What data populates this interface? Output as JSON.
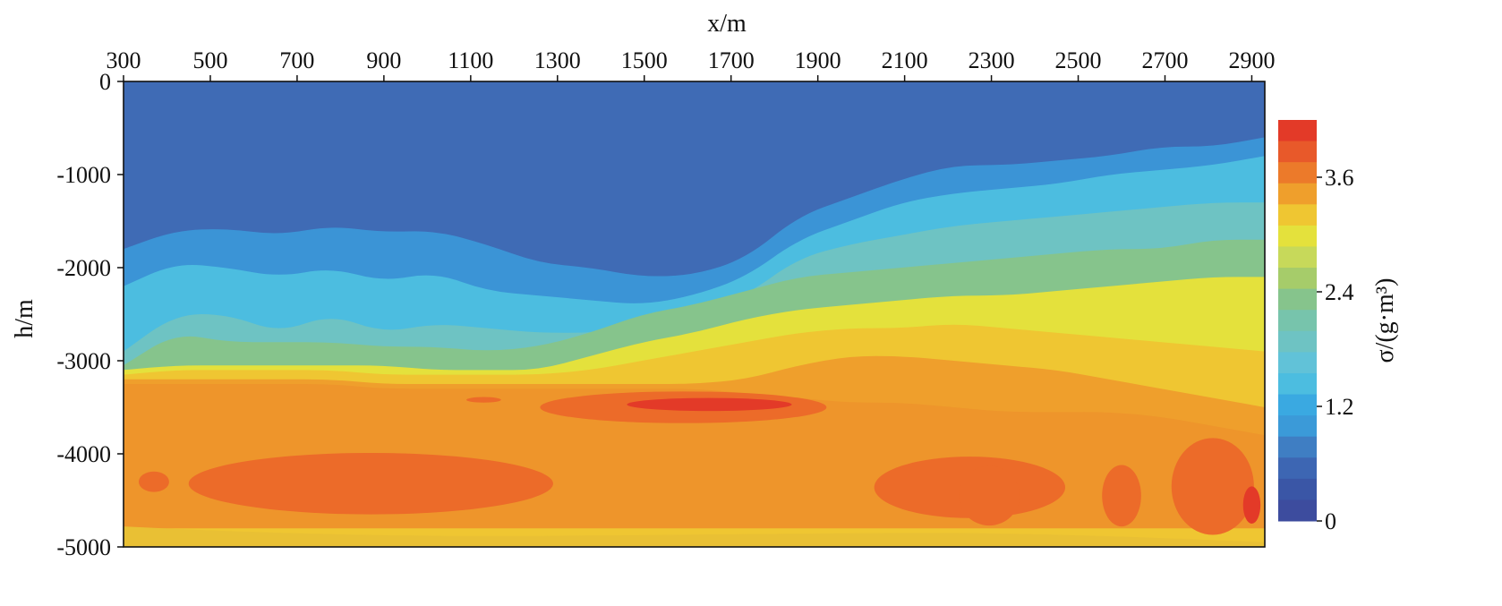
{
  "chart_data": {
    "type": "heatmap",
    "title": "",
    "xlabel": "x/m",
    "ylabel": "h/m",
    "colorbar_label": "σ/(g·m³)",
    "xlim": [
      300,
      2930
    ],
    "ylim": [
      -5000,
      0
    ],
    "x_ticks": [
      300,
      500,
      700,
      900,
      1100,
      1300,
      1500,
      1700,
      1900,
      2100,
      2300,
      2500,
      2700,
      2900
    ],
    "y_ticks": [
      0,
      -1000,
      -2000,
      -3000,
      -4000,
      -5000
    ],
    "colorbar": {
      "range": [
        0,
        4.2
      ],
      "ticks": [
        0,
        1.2,
        2.4,
        3.6
      ],
      "tick_labels": [
        "0",
        "1.2",
        "2.4",
        "3.6"
      ],
      "levels": [
        0,
        0.3,
        0.6,
        0.9,
        1.2,
        1.5,
        1.8,
        2.1,
        2.4,
        2.7,
        3.0,
        3.3,
        3.6,
        3.9,
        4.2
      ],
      "colors": [
        "#3d4c9e",
        "#3a56a6",
        "#3d66b3",
        "#3f7ec3",
        "#3b9ad8",
        "#3aa9e1",
        "#4cbde0",
        "#61c2d8",
        "#6ec3c3",
        "#77c4ac",
        "#86c48c",
        "#a6cc6a",
        "#c7d95a",
        "#e4e13c",
        "#efc632",
        "#ef9f2c",
        "#ec7a2a",
        "#e8592a",
        "#e33a28"
      ]
    },
    "contours": [
      {
        "level": "0-0.6",
        "color": "#3f6bb5",
        "boundary_depths_m": [
          -1800,
          -1600,
          -1580,
          -1650,
          -1550,
          -1620,
          -1600,
          -1750,
          -1950,
          -2000,
          -2100,
          -2080,
          -1900,
          -1450,
          -1250,
          -1050,
          -900,
          -900,
          -850,
          -800,
          -700,
          -700,
          -600
        ]
      },
      {
        "level": "0.9-1.2",
        "color": "#3b94d6",
        "boundary_depths_m": [
          -2200,
          -1950,
          -2000,
          -2100,
          -2000,
          -2150,
          -2050,
          -2250,
          -2300,
          -2350,
          -2400,
          -2300,
          -2100,
          -1700,
          -1500,
          -1300,
          -1200,
          -1150,
          -1100,
          -1000,
          -950,
          -900,
          -800
        ]
      },
      {
        "level": "1.2-1.5",
        "color": "#4cbde0",
        "boundary_depths_m": [
          -2900,
          -2500,
          -2500,
          -2700,
          -2500,
          -2700,
          -2600,
          -2650,
          -2700,
          -2700,
          -2650,
          -2500,
          -2300,
          -1900,
          -1750,
          -1650,
          -1550,
          -1500,
          -1450,
          -1400,
          -1350,
          -1300,
          -1300
        ]
      },
      {
        "level": "1.5-2.1",
        "color": "#6ec3c3",
        "boundary_depths_m": [
          -3050,
          -2700,
          -2800,
          -2800,
          -2800,
          -2850,
          -2850,
          -2900,
          -2850,
          -2700,
          -2500,
          -2400,
          -2250,
          -2100,
          -2050,
          -2000,
          -1950,
          -1900,
          -1850,
          -1800,
          -1800,
          -1700,
          -1700
        ]
      },
      {
        "level": "2.1-2.7",
        "color": "#86c48c",
        "boundary_depths_m": [
          -3100,
          -3050,
          -3050,
          -3050,
          -3050,
          -3050,
          -3100,
          -3100,
          -3100,
          -2950,
          -2800,
          -2700,
          -2550,
          -2450,
          -2400,
          -2350,
          -2300,
          -2300,
          -2250,
          -2200,
          -2150,
          -2100,
          -2100
        ]
      },
      {
        "level": "2.7-3.3",
        "color": "#e4e13c",
        "boundary_depths_m": [
          -3150,
          -3100,
          -3100,
          -3100,
          -3100,
          -3150,
          -3150,
          -3150,
          -3150,
          -3100,
          -3000,
          -2900,
          -2800,
          -2700,
          -2650,
          -2650,
          -2600,
          -2650,
          -2700,
          -2750,
          -2800,
          -2850,
          -2900
        ]
      },
      {
        "level": "3.3-3.6",
        "color": "#efc632",
        "boundary_depths_m": [
          -3200,
          -3200,
          -3200,
          -3200,
          -3200,
          -3250,
          -3250,
          -3250,
          -3250,
          -3250,
          -3250,
          -3250,
          -3200,
          -3050,
          -2950,
          -2950,
          -3000,
          -3050,
          -3100,
          -3200,
          -3300,
          -3400,
          -3500
        ]
      },
      {
        "level": "3.6-3.9",
        "color": "#ef9f2c",
        "boundary_depths_m": [
          -3250,
          -3250,
          -3250,
          -3250,
          -3250,
          -3300,
          -3300,
          -3300,
          -3300,
          -3300,
          -3300,
          -3300,
          -3350,
          -3400,
          -3450,
          -3450,
          -3500,
          -3550,
          -3550,
          -3550,
          -3600,
          -3700,
          -3800
        ]
      }
    ],
    "highs": [
      {
        "x_center": 1600,
        "depth_center_m": -3500,
        "color": "#ec6b29"
      },
      {
        "x_center": 1650,
        "depth_center_m": -3450,
        "color": "#e33a28"
      },
      {
        "x_center": 850,
        "depth_center_m": -4300,
        "color": "#ec6b29"
      },
      {
        "x_center": 2250,
        "depth_center_m": -4350,
        "color": "#ec6b29"
      },
      {
        "x_center": 2800,
        "depth_center_m": -4400,
        "color": "#ec6b29"
      },
      {
        "x_center": 2900,
        "depth_center_m": -4550,
        "color": "#e33a28"
      }
    ]
  }
}
